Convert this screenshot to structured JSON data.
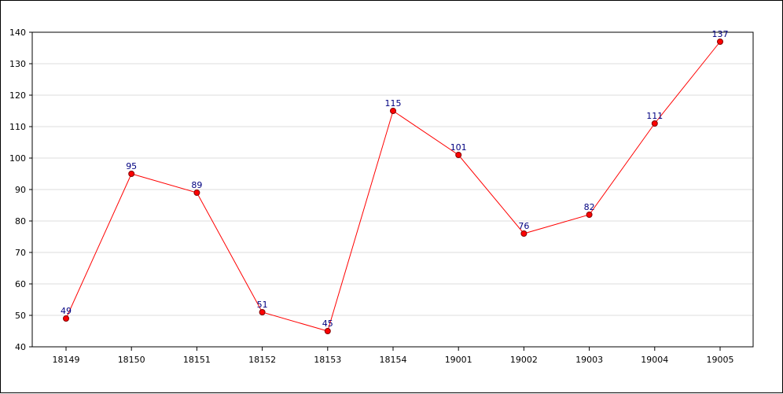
{
  "chart_data": {
    "type": "line",
    "title": "",
    "xlabel": "",
    "ylabel": "",
    "categories": [
      "18149",
      "18150",
      "18151",
      "18152",
      "18153",
      "18154",
      "19001",
      "19002",
      "19003",
      "19004",
      "19005"
    ],
    "series": [
      {
        "values": [
          49,
          95,
          89,
          51,
          45,
          115,
          101,
          76,
          82,
          111,
          137
        ]
      }
    ],
    "ylim": [
      40,
      140
    ],
    "yticks": [
      40,
      50,
      60,
      70,
      80,
      90,
      100,
      110,
      120,
      130,
      140
    ],
    "grid": "horizontal",
    "legend": "none",
    "colors": {
      "line": "#ff0000",
      "marker_fill": "#ff0000",
      "marker_stroke": "#800000",
      "data_label": "#000080",
      "grid": "#dddddd",
      "axis": "#000000"
    }
  }
}
